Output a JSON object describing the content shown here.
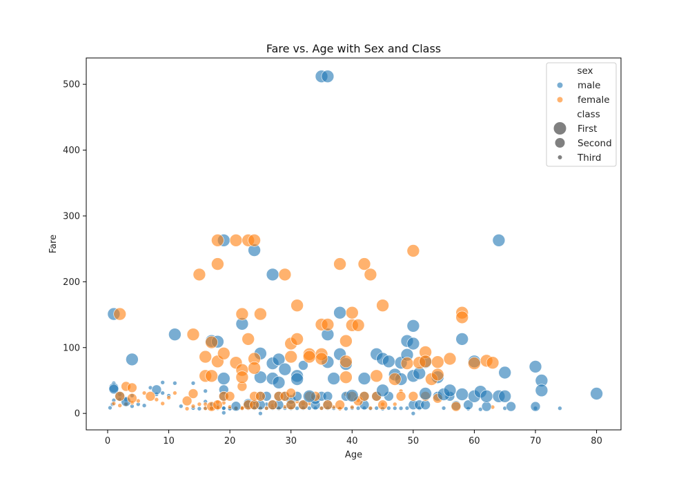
{
  "chart_data": {
    "type": "scatter",
    "title": "Fare vs. Age with Sex and Class",
    "xlabel": "Age",
    "ylabel": "Fare",
    "xlim": [
      -3.5,
      84
    ],
    "ylim": [
      -25,
      540
    ],
    "xticks": [
      0,
      10,
      20,
      30,
      40,
      50,
      60,
      70,
      80
    ],
    "yticks": [
      0,
      100,
      200,
      300,
      400,
      500
    ],
    "grid": false,
    "legend": {
      "placement": "top-right",
      "hue_title": "sex",
      "size_title": "class",
      "hue_entries": [
        {
          "label": "male",
          "color": "#1f77b4"
        },
        {
          "label": "female",
          "color": "#ff7f0e"
        }
      ],
      "size_entries": [
        {
          "label": "First",
          "level": 1
        },
        {
          "label": "Second",
          "level": 2
        },
        {
          "label": "Third",
          "level": 3
        }
      ]
    },
    "colors": {
      "male": "#1f77b4",
      "female": "#ff7f0e"
    },
    "series": [
      {
        "sex": "male",
        "class": "First",
        "points": [
          [
            1,
            151
          ],
          [
            4,
            82
          ],
          [
            11,
            120
          ],
          [
            17,
            110
          ],
          [
            18,
            109
          ],
          [
            19,
            263
          ],
          [
            19,
            53
          ],
          [
            22,
            136
          ],
          [
            24,
            248
          ],
          [
            25,
            91
          ],
          [
            25,
            55
          ],
          [
            27,
            211
          ],
          [
            27,
            76
          ],
          [
            27,
            53
          ],
          [
            28,
            82
          ],
          [
            28,
            47
          ],
          [
            29,
            67
          ],
          [
            31,
            57
          ],
          [
            31,
            52
          ],
          [
            33,
            26
          ],
          [
            35,
            512
          ],
          [
            36,
            512
          ],
          [
            36,
            78
          ],
          [
            36,
            120
          ],
          [
            37,
            53
          ],
          [
            38,
            153
          ],
          [
            38,
            90
          ],
          [
            39,
            75
          ],
          [
            40,
            27
          ],
          [
            42,
            53
          ],
          [
            44,
            90
          ],
          [
            45,
            83
          ],
          [
            45,
            35
          ],
          [
            46,
            79
          ],
          [
            47,
            59
          ],
          [
            48,
            52
          ],
          [
            48,
            77
          ],
          [
            49,
            89
          ],
          [
            49,
            110
          ],
          [
            50,
            133
          ],
          [
            50,
            106
          ],
          [
            50,
            57
          ],
          [
            51,
            61
          ],
          [
            52,
            78
          ],
          [
            52,
            30
          ],
          [
            54,
            55
          ],
          [
            55,
            29
          ],
          [
            56,
            35
          ],
          [
            58,
            113
          ],
          [
            58,
            29
          ],
          [
            60,
            79
          ],
          [
            60,
            26
          ],
          [
            61,
            33
          ],
          [
            62,
            26
          ],
          [
            64,
            263
          ],
          [
            64,
            26
          ],
          [
            65,
            62
          ],
          [
            65,
            26
          ],
          [
            70,
            71
          ],
          [
            71,
            50
          ],
          [
            71,
            35
          ],
          [
            80,
            30
          ]
        ]
      },
      {
        "sex": "female",
        "class": "First",
        "points": [
          [
            2,
            151
          ],
          [
            14,
            120
          ],
          [
            15,
            211
          ],
          [
            16,
            86
          ],
          [
            16,
            57
          ],
          [
            17,
            108
          ],
          [
            17,
            57
          ],
          [
            18,
            263
          ],
          [
            18,
            227
          ],
          [
            18,
            79
          ],
          [
            19,
            91
          ],
          [
            21,
            263
          ],
          [
            21,
            77
          ],
          [
            22,
            151
          ],
          [
            22,
            66
          ],
          [
            22,
            55
          ],
          [
            23,
            263
          ],
          [
            23,
            113
          ],
          [
            24,
            263
          ],
          [
            24,
            83
          ],
          [
            24,
            69
          ],
          [
            25,
            151
          ],
          [
            29,
            211
          ],
          [
            30,
            106
          ],
          [
            30,
            86
          ],
          [
            31,
            164
          ],
          [
            31,
            113
          ],
          [
            33,
            90
          ],
          [
            33,
            86
          ],
          [
            35,
            135
          ],
          [
            35,
            90
          ],
          [
            35,
            83
          ],
          [
            36,
            135
          ],
          [
            38,
            227
          ],
          [
            39,
            110
          ],
          [
            39,
            79
          ],
          [
            39,
            55
          ],
          [
            40,
            153
          ],
          [
            40,
            134
          ],
          [
            41,
            134
          ],
          [
            42,
            227
          ],
          [
            43,
            211
          ],
          [
            44,
            57
          ],
          [
            45,
            164
          ],
          [
            47,
            52
          ],
          [
            49,
            76
          ],
          [
            50,
            247
          ],
          [
            51,
            77
          ],
          [
            52,
            93
          ],
          [
            52,
            79
          ],
          [
            53,
            52
          ],
          [
            54,
            78
          ],
          [
            54,
            59
          ],
          [
            56,
            83
          ],
          [
            58,
            153
          ],
          [
            58,
            146
          ],
          [
            60,
            76
          ],
          [
            62,
            80
          ],
          [
            63,
            77
          ]
        ]
      },
      {
        "sex": "male",
        "class": "Second",
        "points": [
          [
            1,
            39
          ],
          [
            1,
            37
          ],
          [
            2,
            26
          ],
          [
            3,
            18
          ],
          [
            8,
            36
          ],
          [
            19,
            36
          ],
          [
            19,
            26
          ],
          [
            21,
            11
          ],
          [
            23,
            13
          ],
          [
            23,
            15
          ],
          [
            24,
            13
          ],
          [
            25,
            26
          ],
          [
            25,
            13
          ],
          [
            26,
            26
          ],
          [
            27,
            13
          ],
          [
            28,
            13
          ],
          [
            28,
            26
          ],
          [
            29,
            26
          ],
          [
            30,
            13
          ],
          [
            30,
            21
          ],
          [
            31,
            26
          ],
          [
            32,
            13
          ],
          [
            32,
            73
          ],
          [
            34,
            13
          ],
          [
            34,
            21
          ],
          [
            35,
            26
          ],
          [
            36,
            13
          ],
          [
            36,
            26
          ],
          [
            39,
            26
          ],
          [
            42,
            13
          ],
          [
            42,
            26
          ],
          [
            44,
            26
          ],
          [
            46,
            26
          ],
          [
            50,
            13
          ],
          [
            51,
            13
          ],
          [
            52,
            13
          ],
          [
            54,
            26
          ],
          [
            56,
            26
          ],
          [
            57,
            12
          ],
          [
            59,
            13
          ],
          [
            62,
            10.5
          ],
          [
            66,
            10.5
          ],
          [
            70,
            10.5
          ]
        ]
      },
      {
        "sex": "female",
        "class": "Second",
        "points": [
          [
            2,
            26
          ],
          [
            3,
            41
          ],
          [
            4,
            23
          ],
          [
            4,
            39
          ],
          [
            7,
            26
          ],
          [
            13,
            19
          ],
          [
            14,
            30
          ],
          [
            17,
            10.5
          ],
          [
            18,
            13
          ],
          [
            19,
            26
          ],
          [
            20,
            26
          ],
          [
            22,
            41
          ],
          [
            23,
            13
          ],
          [
            24,
            13
          ],
          [
            24,
            26
          ],
          [
            25,
            26
          ],
          [
            27,
            13
          ],
          [
            28,
            26
          ],
          [
            29,
            26
          ],
          [
            30,
            13
          ],
          [
            30,
            31
          ],
          [
            32,
            13
          ],
          [
            33,
            26
          ],
          [
            34,
            26
          ],
          [
            36,
            13
          ],
          [
            38,
            13
          ],
          [
            40,
            26
          ],
          [
            41,
            19
          ],
          [
            42,
            26
          ],
          [
            44,
            26
          ],
          [
            45,
            13
          ],
          [
            48,
            26
          ],
          [
            50,
            26
          ],
          [
            52,
            26
          ],
          [
            54,
            23
          ],
          [
            57,
            10.5
          ]
        ]
      },
      {
        "sex": "male",
        "class": "Third",
        "points": [
          [
            0.4,
            8.5
          ],
          [
            0.8,
            14
          ],
          [
            1,
            20
          ],
          [
            1,
            46
          ],
          [
            2,
            21
          ],
          [
            2,
            29
          ],
          [
            3,
            15
          ],
          [
            3,
            21
          ],
          [
            4,
            27
          ],
          [
            4,
            11
          ],
          [
            5,
            14
          ],
          [
            6,
            12
          ],
          [
            7,
            39
          ],
          [
            8,
            29
          ],
          [
            9,
            47
          ],
          [
            9,
            31
          ],
          [
            10,
            27
          ],
          [
            11,
            46
          ],
          [
            12,
            11
          ],
          [
            14,
            46
          ],
          [
            14,
            8
          ],
          [
            15,
            7.2
          ],
          [
            16,
            8
          ],
          [
            16,
            18
          ],
          [
            16,
            34
          ],
          [
            17,
            7.9
          ],
          [
            17,
            14
          ],
          [
            18,
            7.8
          ],
          [
            18,
            11
          ],
          [
            19,
            8
          ],
          [
            19,
            7.9
          ],
          [
            19,
            1
          ],
          [
            20,
            8
          ],
          [
            20,
            7.2
          ],
          [
            21,
            7.9
          ],
          [
            21,
            8
          ],
          [
            22,
            7.2
          ],
          [
            22,
            8
          ],
          [
            23,
            7.8
          ],
          [
            24,
            7.9
          ],
          [
            24,
            8
          ],
          [
            25,
            0
          ],
          [
            25,
            7.2
          ],
          [
            26,
            8
          ],
          [
            26,
            14
          ],
          [
            27,
            7.9
          ],
          [
            28,
            8
          ],
          [
            28,
            7.2
          ],
          [
            29,
            7.9
          ],
          [
            30,
            8
          ],
          [
            30,
            7.2
          ],
          [
            31,
            7.8
          ],
          [
            32,
            8
          ],
          [
            32,
            7.9
          ],
          [
            33,
            8
          ],
          [
            34,
            8
          ],
          [
            35,
            8
          ],
          [
            36,
            7.9
          ],
          [
            37,
            7.8
          ],
          [
            38,
            8
          ],
          [
            39,
            7.2
          ],
          [
            40,
            8
          ],
          [
            41,
            7.9
          ],
          [
            42,
            8
          ],
          [
            43,
            7.2
          ],
          [
            44,
            8
          ],
          [
            45,
            7.2
          ],
          [
            46,
            8
          ],
          [
            47,
            7.9
          ],
          [
            48,
            7.8
          ],
          [
            49,
            8
          ],
          [
            50,
            0
          ],
          [
            51,
            7.8
          ],
          [
            55,
            8
          ],
          [
            59,
            7.2
          ],
          [
            61,
            6.2
          ],
          [
            65,
            7.8
          ],
          [
            70,
            7.8
          ],
          [
            74,
            7.8
          ]
        ]
      },
      {
        "sex": "female",
        "class": "Third",
        "points": [
          [
            1,
            15
          ],
          [
            2,
            12
          ],
          [
            3,
            14
          ],
          [
            4,
            16
          ],
          [
            5,
            19
          ],
          [
            6,
            31
          ],
          [
            8,
            21
          ],
          [
            9,
            15
          ],
          [
            10,
            24
          ],
          [
            11,
            31
          ],
          [
            13,
            7.2
          ],
          [
            14,
            11
          ],
          [
            15,
            14
          ],
          [
            16,
            7.7
          ],
          [
            16,
            14
          ],
          [
            17,
            7.7
          ],
          [
            18,
            9
          ],
          [
            18,
            17
          ],
          [
            19,
            16
          ],
          [
            20,
            9.8
          ],
          [
            21,
            7.7
          ],
          [
            22,
            9
          ],
          [
            22,
            7.8
          ],
          [
            23,
            7.9
          ],
          [
            24,
            16
          ],
          [
            25,
            7.9
          ],
          [
            26,
            7.9
          ],
          [
            27,
            12
          ],
          [
            28,
            7.9
          ],
          [
            29,
            10
          ],
          [
            30,
            8
          ],
          [
            31,
            18
          ],
          [
            32,
            15
          ],
          [
            33,
            15
          ],
          [
            35,
            7.9
          ],
          [
            37,
            9.6
          ],
          [
            38,
            7.2
          ],
          [
            39,
            29
          ],
          [
            40,
            9.5
          ],
          [
            41,
            20
          ],
          [
            43,
            8
          ],
          [
            45,
            14
          ],
          [
            47,
            14
          ],
          [
            48,
            34
          ],
          [
            63,
            9.6
          ]
        ]
      }
    ]
  }
}
